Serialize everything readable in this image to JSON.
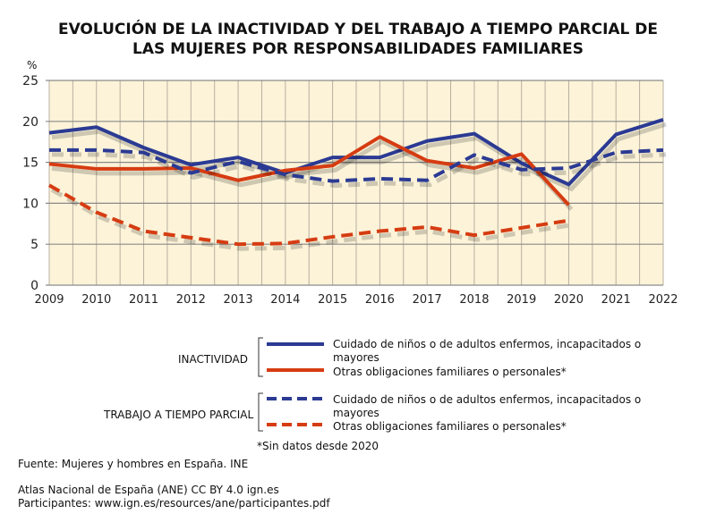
{
  "chart_data": {
    "type": "line",
    "title": "EVOLUCIÓN DE LA INACTIVIDAD Y DEL TRABAJO A TIEMPO PARCIAL DE LAS MUJERES POR RESPONSABILIDADES FAMILIARES",
    "title_lines": [
      "EVOLUCIÓN DE LA INACTIVIDAD Y DEL TRABAJO A TIEMPO PARCIAL DE",
      "LAS MUJERES POR RESPONSABILIDADES FAMILIARES"
    ],
    "ylabel": "%",
    "ylim": [
      0,
      25
    ],
    "yticks": [
      0,
      5,
      10,
      15,
      20,
      25
    ],
    "x": [
      "2009",
      "2010",
      "2011",
      "2012",
      "2013",
      "2014",
      "2015",
      "2016",
      "2017",
      "2018",
      "2019",
      "2020",
      "2021",
      "2022"
    ],
    "grid": true,
    "series": [
      {
        "group": "INACTIVIDAD",
        "name": "Cuidado de niños o de adultos enfermos, incapacitados o mayores",
        "color": "#2b3a93",
        "dash": false,
        "values": [
          18.6,
          19.3,
          16.8,
          14.7,
          15.6,
          13.7,
          15.6,
          15.6,
          17.6,
          18.5,
          14.9,
          12.3,
          18.4,
          20.2
        ]
      },
      {
        "group": "INACTIVIDAD",
        "name": "Otras obligaciones familiares o personales*",
        "color": "#d63c12",
        "dash": false,
        "values": [
          14.8,
          14.2,
          14.2,
          14.3,
          12.8,
          14.0,
          14.6,
          18.1,
          15.2,
          14.3,
          16.0,
          9.8,
          null,
          null
        ]
      },
      {
        "group": "TRABAJO A TIEMPO PARCIAL",
        "name": "Cuidado de niños o de adultos enfermos, incapacitados o mayores",
        "color": "#2b3a93",
        "dash": true,
        "values": [
          16.5,
          16.5,
          16.2,
          13.7,
          15.1,
          13.5,
          12.7,
          13.0,
          12.8,
          15.9,
          14.1,
          14.3,
          16.2,
          16.5
        ]
      },
      {
        "group": "TRABAJO A TIEMPO PARCIAL",
        "name": "Otras obligaciones familiares o personales*",
        "color": "#d63c12",
        "dash": true,
        "values": [
          12.2,
          8.9,
          6.6,
          5.8,
          5.0,
          5.1,
          5.9,
          6.6,
          7.1,
          6.1,
          7.0,
          7.9,
          null,
          null
        ]
      }
    ],
    "legend": {
      "groups": [
        "INACTIVIDAD",
        "TRABAJO A TIEMPO PARCIAL"
      ],
      "placement": "bottom",
      "line1a": "Cuidado de niños o de adultos enfermos, incapacitados o",
      "line1b": "mayores",
      "line2": "Otras obligaciones familiares o personales*"
    },
    "note": "*Sin datos desde 2020"
  },
  "footer": {
    "source": "Fuente: Mujeres y hombres en España. INE",
    "license": "Atlas Nacional de España (ANE) CC BY 4.0 ign.es",
    "participants": "Participantes: www.ign.es/resources/ane/participantes.pdf"
  }
}
